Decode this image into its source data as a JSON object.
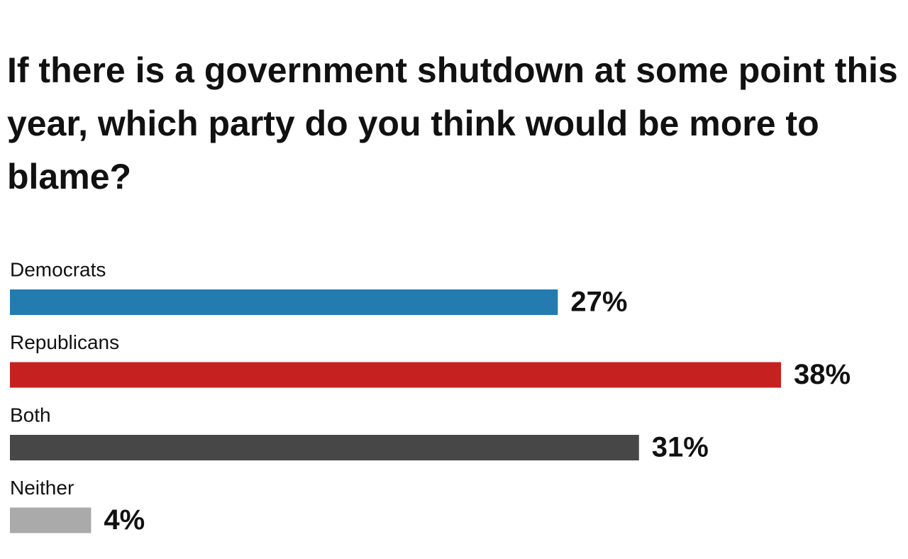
{
  "chart_data": {
    "type": "hbar",
    "title": "If there is a government shutdown at some point this year, which party do you think would be more to blame?",
    "categories": [
      "Democrats",
      "Republicans",
      "Both",
      "Neither"
    ],
    "values": [
      27,
      38,
      31,
      4
    ],
    "value_labels": [
      "27%",
      "38%",
      "31%",
      "4%"
    ],
    "colors": [
      "#237bb0",
      "#c62121",
      "#474747",
      "#aaaaaa"
    ]
  }
}
